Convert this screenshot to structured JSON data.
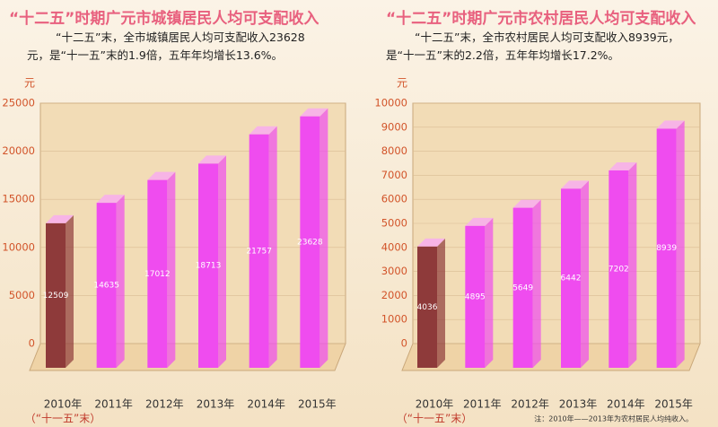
{
  "chart_data": [
    {
      "type": "bar3d",
      "title": "“十二五”时期广元市城镇居民人均可支配收入",
      "subtitle": "“十二五”末，全市城镇居民人均可支配收入23628元，是“十一五”末的1.9倍，五年年均增长13.6%。",
      "y_unit": "元",
      "categories": [
        "2010年",
        "2011年",
        "2012年",
        "2013年",
        "2014年",
        "2015年"
      ],
      "values": [
        12509,
        14635,
        17012,
        18713,
        21757,
        23628
      ],
      "colors": [
        "#8e3a3a",
        "#ef4cef",
        "#ef4cef",
        "#ef4cef",
        "#ef4cef",
        "#ef4cef"
      ],
      "annotation": "（“十一五”末）",
      "ylim": [
        0,
        25000
      ],
      "yticks": [
        0,
        5000,
        10000,
        15000,
        20000,
        25000
      ]
    },
    {
      "type": "bar3d",
      "title": "“十二五”时期广元市农村居民人均可支配收入",
      "subtitle": "“十二五”末，全市农村居民人均可支配收入8939元，是“十一五”末的2.2倍，五年年均增长17.2%。",
      "y_unit": "元",
      "categories": [
        "2010年",
        "2011年",
        "2012年",
        "2013年",
        "2014年",
        "2015年"
      ],
      "values": [
        4036,
        4895,
        5649,
        6442,
        7202,
        8939
      ],
      "colors": [
        "#8e3a3a",
        "#ef4cef",
        "#ef4cef",
        "#ef4cef",
        "#ef4cef",
        "#ef4cef"
      ],
      "annotation": "（“十一五”末）",
      "note": "注：2010年——2013年为农村居民人均纯收入。",
      "ylim": [
        0,
        10000
      ],
      "yticks": [
        0,
        1000,
        2000,
        3000,
        4000,
        5000,
        6000,
        7000,
        8000,
        9000,
        10000
      ]
    }
  ]
}
